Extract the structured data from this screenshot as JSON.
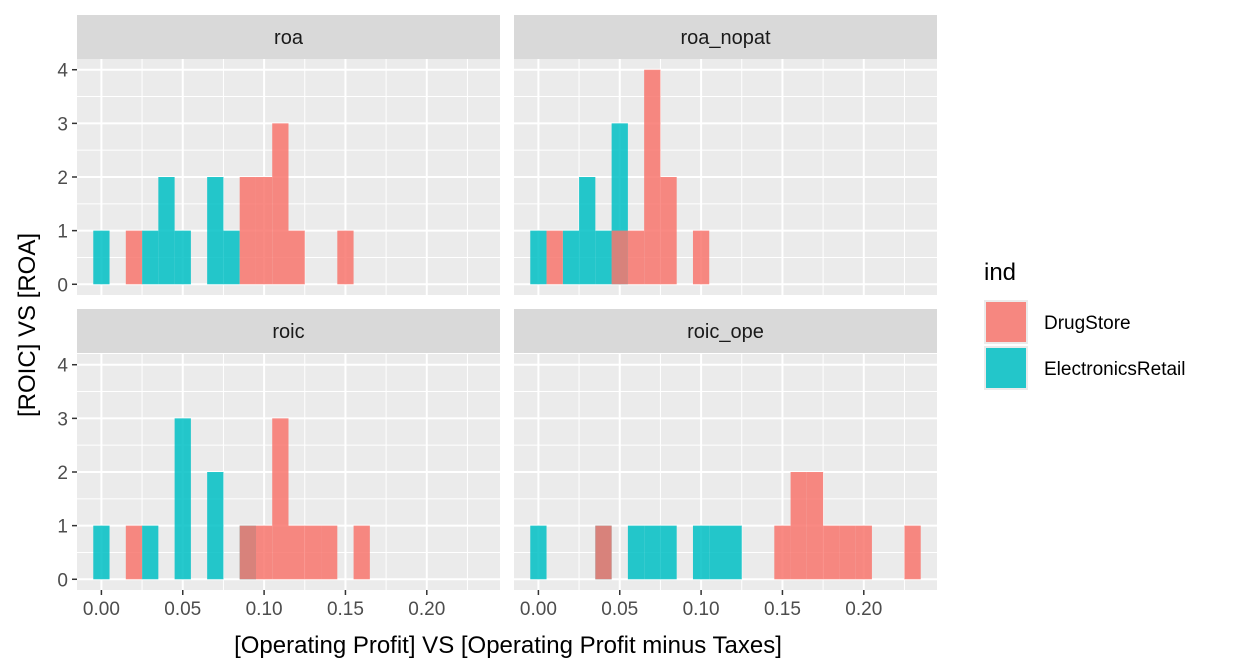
{
  "chart_data": {
    "type": "bar",
    "subtype": "faceted-histogram",
    "xlabel": "[Operating Profit] VS [Operating Profit minus Taxes]",
    "ylabel": "[ROIC] VS [ROA]",
    "xlim": [
      -0.015,
      0.245
    ],
    "ylim": [
      -0.2,
      4.2
    ],
    "x_ticks": [
      0.0,
      0.05,
      0.1,
      0.15,
      0.2
    ],
    "x_tick_labels": [
      "0.00",
      "0.05",
      "0.10",
      "0.15",
      "0.20"
    ],
    "y_ticks": [
      0,
      1,
      2,
      3,
      4
    ],
    "y_tick_labels": [
      "0",
      "1",
      "2",
      "3",
      "4"
    ],
    "bin_width": 0.01,
    "grid": true,
    "legend": {
      "title": "ind",
      "position": "right",
      "entries": [
        {
          "label": "DrugStore",
          "color": "#F8766D"
        },
        {
          "label": "ElectronicsRetail",
          "color": "#00BFC4"
        }
      ]
    },
    "colors": {
      "DrugStore": "#F8766D",
      "ElectronicsRetail": "#00BFC4",
      "panel_background": "#EBEBEB",
      "strip_background": "#D9D9D9",
      "grid": "#FFFFFF"
    },
    "panels": [
      {
        "label": "roa",
        "series": [
          {
            "name": "ElectronicsRetail",
            "bins": [
              {
                "x": 0.0,
                "count": 1
              },
              {
                "x": 0.03,
                "count": 1
              },
              {
                "x": 0.04,
                "count": 2
              },
              {
                "x": 0.05,
                "count": 1
              },
              {
                "x": 0.07,
                "count": 2
              },
              {
                "x": 0.08,
                "count": 1
              }
            ]
          },
          {
            "name": "DrugStore",
            "bins": [
              {
                "x": 0.02,
                "count": 1
              },
              {
                "x": 0.09,
                "count": 2
              },
              {
                "x": 0.1,
                "count": 2
              },
              {
                "x": 0.11,
                "count": 3
              },
              {
                "x": 0.12,
                "count": 1
              },
              {
                "x": 0.15,
                "count": 1
              }
            ]
          }
        ]
      },
      {
        "label": "roa_nopat",
        "series": [
          {
            "name": "ElectronicsRetail",
            "bins": [
              {
                "x": 0.0,
                "count": 1
              },
              {
                "x": 0.02,
                "count": 1
              },
              {
                "x": 0.03,
                "count": 2
              },
              {
                "x": 0.04,
                "count": 1
              },
              {
                "x": 0.05,
                "count": 3
              }
            ]
          },
          {
            "name": "DrugStore",
            "bins": [
              {
                "x": 0.01,
                "count": 1
              },
              {
                "x": 0.05,
                "count": 1
              },
              {
                "x": 0.06,
                "count": 1
              },
              {
                "x": 0.07,
                "count": 4
              },
              {
                "x": 0.08,
                "count": 2
              },
              {
                "x": 0.1,
                "count": 1
              }
            ]
          }
        ]
      },
      {
        "label": "roic",
        "series": [
          {
            "name": "ElectronicsRetail",
            "bins": [
              {
                "x": 0.0,
                "count": 1
              },
              {
                "x": 0.03,
                "count": 1
              },
              {
                "x": 0.05,
                "count": 3
              },
              {
                "x": 0.07,
                "count": 2
              },
              {
                "x": 0.09,
                "count": 1
              }
            ]
          },
          {
            "name": "DrugStore",
            "bins": [
              {
                "x": 0.02,
                "count": 1
              },
              {
                "x": 0.09,
                "count": 1
              },
              {
                "x": 0.1,
                "count": 1
              },
              {
                "x": 0.11,
                "count": 3
              },
              {
                "x": 0.12,
                "count": 1
              },
              {
                "x": 0.13,
                "count": 1
              },
              {
                "x": 0.14,
                "count": 1
              },
              {
                "x": 0.16,
                "count": 1
              }
            ]
          }
        ]
      },
      {
        "label": "roic_ope",
        "series": [
          {
            "name": "ElectronicsRetail",
            "bins": [
              {
                "x": 0.0,
                "count": 1
              },
              {
                "x": 0.04,
                "count": 1
              },
              {
                "x": 0.06,
                "count": 1
              },
              {
                "x": 0.07,
                "count": 1
              },
              {
                "x": 0.08,
                "count": 1
              },
              {
                "x": 0.1,
                "count": 1
              },
              {
                "x": 0.11,
                "count": 1
              },
              {
                "x": 0.12,
                "count": 1
              }
            ]
          },
          {
            "name": "DrugStore",
            "bins": [
              {
                "x": 0.04,
                "count": 1
              },
              {
                "x": 0.15,
                "count": 1
              },
              {
                "x": 0.16,
                "count": 2
              },
              {
                "x": 0.17,
                "count": 2
              },
              {
                "x": 0.18,
                "count": 1
              },
              {
                "x": 0.19,
                "count": 1
              },
              {
                "x": 0.2,
                "count": 1
              },
              {
                "x": 0.23,
                "count": 1
              }
            ]
          }
        ]
      }
    ]
  }
}
